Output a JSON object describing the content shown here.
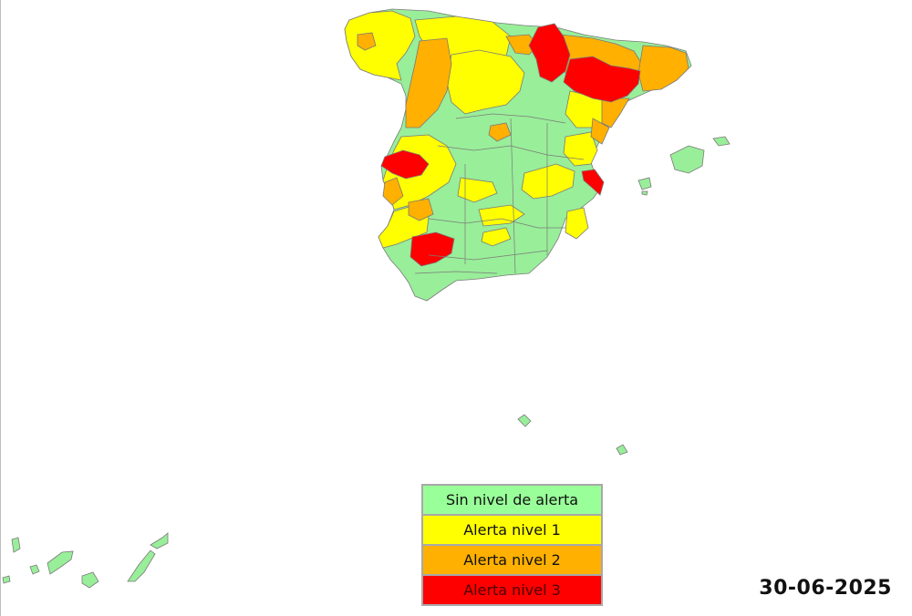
{
  "map": {
    "date": "30-06-2025",
    "legend": [
      {
        "label": "Sin nivel de alerta",
        "color": "#99ff99",
        "level": 0
      },
      {
        "label": "Alerta nivel 1",
        "color": "#ffff00",
        "level": 1
      },
      {
        "label": "Alerta nivel 2",
        "color": "#ffb000",
        "level": 2
      },
      {
        "label": "Alerta nivel 3",
        "color": "#ff0000",
        "level": 3
      }
    ],
    "colors": {
      "none": "#99ee99",
      "level1": "#ffff00",
      "level2": "#ffb000",
      "level3": "#ff0000",
      "border": "#7a7a7a"
    }
  }
}
